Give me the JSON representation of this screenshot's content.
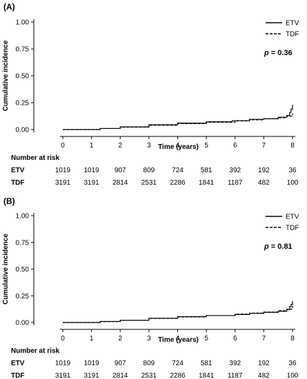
{
  "chart_data": [
    {
      "type": "line",
      "panel_label": "(A)",
      "ylabel": "Cumulative incidence",
      "xlabel": "Time (years)",
      "yticks": [
        "0.00",
        "0.25",
        "0.50",
        "0.75",
        "1.00"
      ],
      "ylim": [
        0,
        1
      ],
      "xticks": [
        0,
        1,
        2,
        3,
        4,
        5,
        6,
        7,
        8
      ],
      "xlim": [
        0,
        8
      ],
      "grid": false,
      "legend_position": "top-right",
      "p_value": {
        "label": "p",
        "value": "= 0.36"
      },
      "series": [
        {
          "name": "ETV",
          "style": "solid",
          "x": [
            0,
            1.0,
            1.3,
            2.0,
            3.0,
            4.0,
            5.0,
            5.9,
            6.5,
            7.0,
            7.5,
            7.8,
            7.9,
            7.95,
            8.0
          ],
          "y": [
            0,
            0,
            0.01,
            0.025,
            0.045,
            0.06,
            0.072,
            0.083,
            0.095,
            0.1,
            0.115,
            0.13,
            0.16,
            0.19,
            0.23
          ]
        },
        {
          "name": "TDF",
          "style": "dashed",
          "x": [
            0,
            1.0,
            1.3,
            2.0,
            3.0,
            4.0,
            5.0,
            6.0,
            6.5,
            7.0,
            7.5,
            7.8,
            8.0
          ],
          "y": [
            0,
            0,
            0.01,
            0.022,
            0.04,
            0.055,
            0.068,
            0.08,
            0.09,
            0.1,
            0.11,
            0.125,
            0.15
          ]
        }
      ],
      "risk_table": {
        "title": "Number at risk",
        "rows": [
          {
            "label": "ETV",
            "values": [
              "1019",
              "1019",
              "907",
              "809",
              "724",
              "581",
              "392",
              "192",
              "36"
            ]
          },
          {
            "label": "TDF",
            "values": [
              "3191",
              "3191",
              "2814",
              "2531",
              "2286",
              "1841",
              "1187",
              "482",
              "100"
            ]
          }
        ]
      }
    },
    {
      "type": "line",
      "panel_label": "(B)",
      "ylabel": "Cumulative incidence",
      "xlabel": "Time (years)",
      "yticks": [
        "0.00",
        "0.25",
        "0.50",
        "0.75",
        "1.00"
      ],
      "ylim": [
        0,
        1
      ],
      "xticks": [
        0,
        1,
        2,
        3,
        4,
        5,
        6,
        7,
        8
      ],
      "xlim": [
        0,
        8
      ],
      "grid": false,
      "legend_position": "top-right",
      "p_value": {
        "label": "p",
        "value": "= 0.81"
      },
      "series": [
        {
          "name": "ETV",
          "style": "solid",
          "x": [
            0,
            1.0,
            1.3,
            2.0,
            3.0,
            4.0,
            5.0,
            6.0,
            6.5,
            7.0,
            7.5,
            7.8,
            7.9,
            7.95,
            8.0
          ],
          "y": [
            0,
            0,
            0.01,
            0.02,
            0.04,
            0.055,
            0.065,
            0.075,
            0.085,
            0.095,
            0.105,
            0.12,
            0.15,
            0.17,
            0.2
          ]
        },
        {
          "name": "TDF",
          "style": "dashed",
          "x": [
            0,
            1.0,
            1.3,
            2.0,
            3.0,
            4.0,
            5.0,
            6.0,
            6.5,
            7.0,
            7.5,
            7.8,
            8.0
          ],
          "y": [
            0,
            0,
            0.008,
            0.02,
            0.038,
            0.052,
            0.065,
            0.078,
            0.088,
            0.098,
            0.11,
            0.125,
            0.155
          ]
        }
      ],
      "risk_table": {
        "title": "Number at risk",
        "rows": [
          {
            "label": "ETV",
            "values": [
              "1019",
              "1019",
              "907",
              "809",
              "724",
              "581",
              "392",
              "192",
              "36"
            ]
          },
          {
            "label": "TDF",
            "values": [
              "3191",
              "3191",
              "2814",
              "2531",
              "2286",
              "1841",
              "1187",
              "482",
              "100"
            ]
          }
        ]
      }
    }
  ]
}
